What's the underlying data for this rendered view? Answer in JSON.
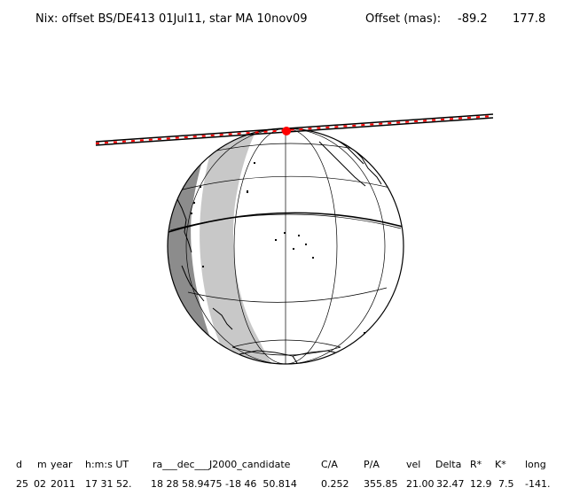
{
  "header": {
    "title": "Nix: offset BS/DE413 01Jul11, star MA 10nov09",
    "offset_label": "Offset (mas):",
    "offset_x": "-89.2",
    "offset_y": "177.8"
  },
  "colors": {
    "night": "#8c8c8c",
    "twilight": "#c8c8c8",
    "day": "#ffffff",
    "track": "#000000",
    "track_marks": "#ff0000",
    "star_point": "#ff0000"
  },
  "table": {
    "headers": [
      "d",
      "m",
      "year",
      "h:m:s UT",
      "ra___dec___J2000_candidate",
      "C/A",
      "P/A",
      "vel",
      "Delta",
      "R*",
      "K*",
      "long"
    ],
    "values": [
      "25",
      "02",
      "2011",
      "17 31 52.",
      "18 28 58.9475 -18 46  50.814",
      "0.252",
      "355.85",
      "21.00",
      "32.47",
      "12.9",
      "7.5",
      "-141."
    ]
  }
}
